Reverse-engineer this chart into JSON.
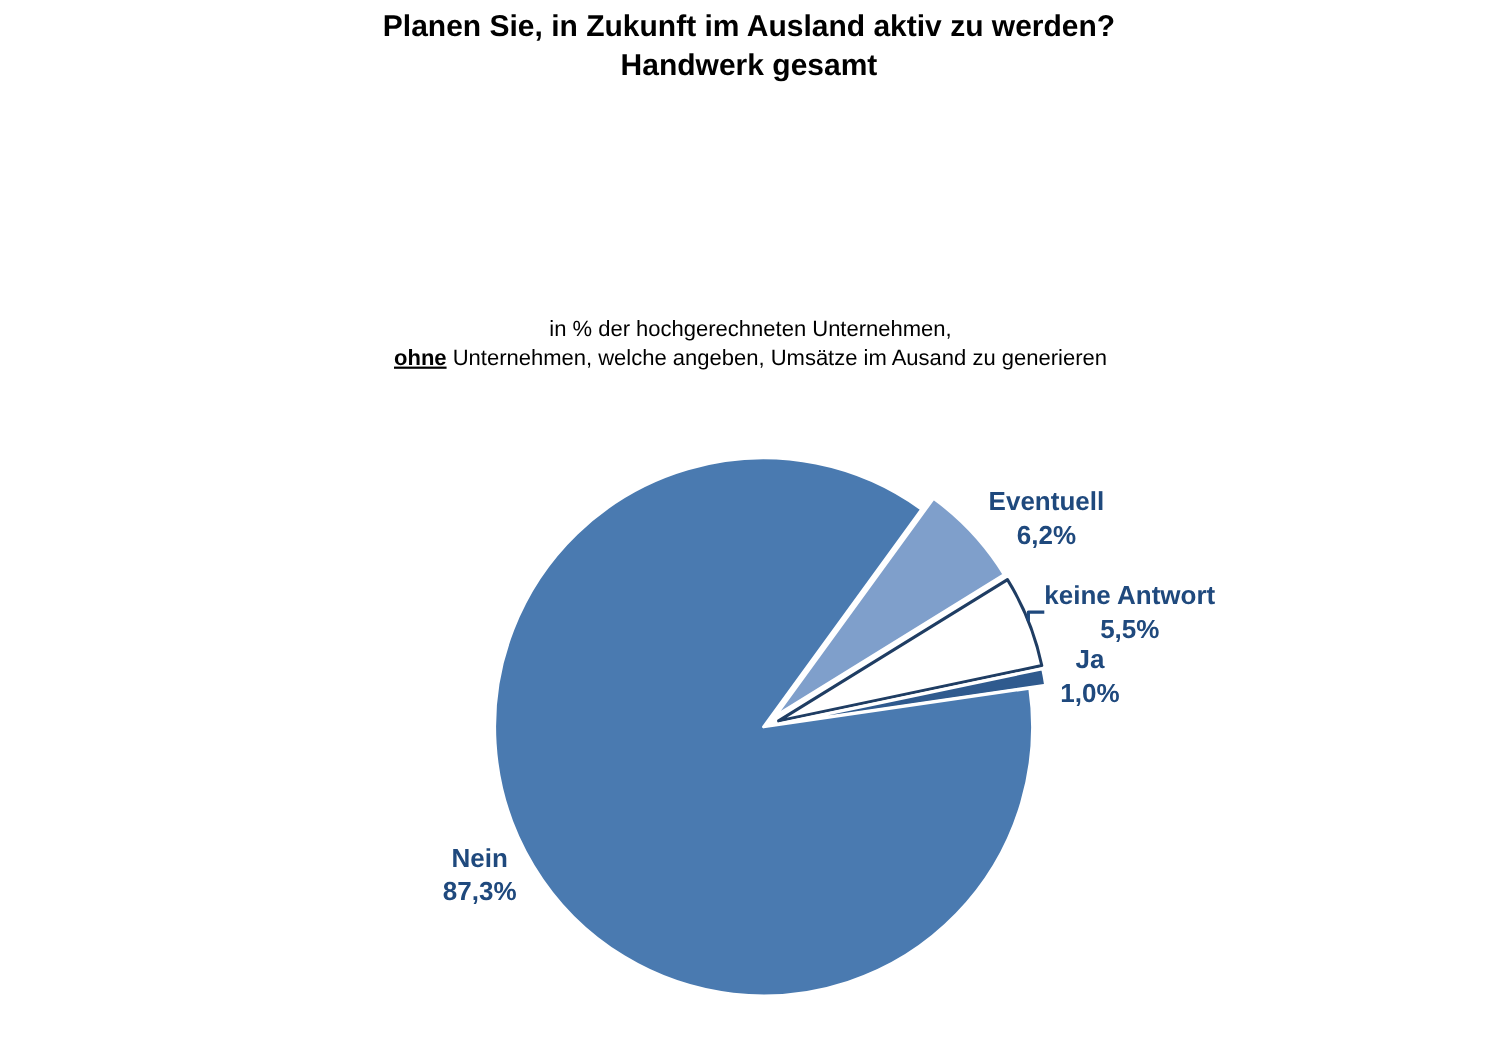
{
  "chart_data": {
    "type": "pie",
    "title": "Planen Sie, in Zukunft im Ausland aktiv zu werden?\nHandwerk gesamt",
    "subtitle": "in % der hochgerechneten Unternehmen,\nohne Unternehmen, welche angeben, Umsätze im Ausand zu generieren",
    "categories": [
      "Eventuell",
      "keine Antwort",
      "Ja",
      "Nein"
    ],
    "values": [
      6.2,
      5.5,
      1.0,
      87.3
    ],
    "value_labels": [
      "6,2%",
      "5,5%",
      "1,0%",
      "87,3%"
    ],
    "colors": [
      "#7f9fcb",
      "#ffffff",
      "#2f5a8e",
      "#4a7ab0"
    ],
    "legend": false
  }
}
